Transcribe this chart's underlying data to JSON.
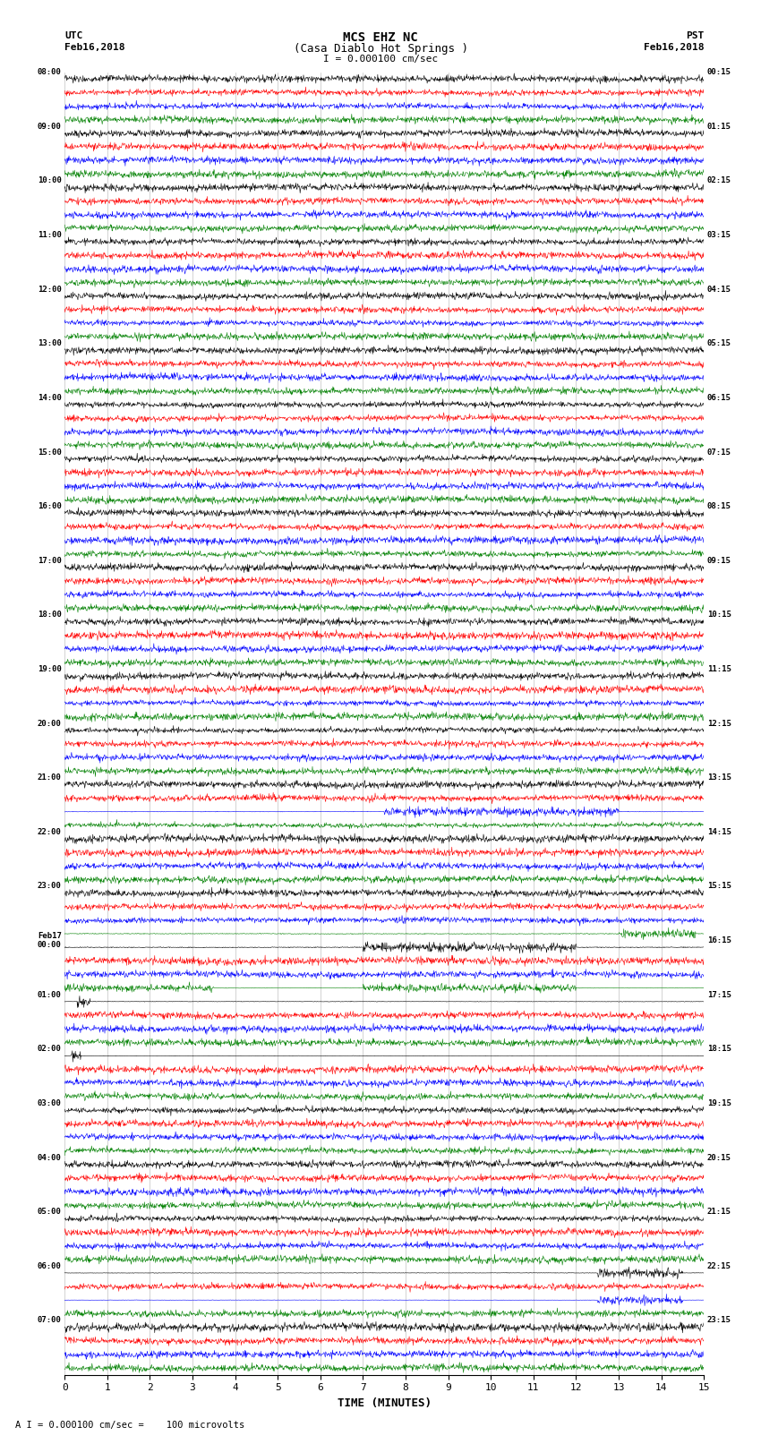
{
  "title_line1": "MCS EHZ NC",
  "title_line2": "(Casa Diablo Hot Springs )",
  "scale_label": "I = 0.000100 cm/sec",
  "utc_label1": "UTC",
  "utc_label2": "Feb16,2018",
  "pst_label1": "PST",
  "pst_label2": "Feb16,2018",
  "bottom_label": "A I = 0.000100 cm/sec =    100 microvolts",
  "xlabel": "TIME (MINUTES)",
  "left_times": [
    "08:00",
    "09:00",
    "10:00",
    "11:00",
    "12:00",
    "13:00",
    "14:00",
    "15:00",
    "16:00",
    "17:00",
    "18:00",
    "19:00",
    "20:00",
    "21:00",
    "22:00",
    "23:00",
    "Feb17\n00:00",
    "01:00",
    "02:00",
    "03:00",
    "04:00",
    "05:00",
    "06:00",
    "07:00"
  ],
  "right_times": [
    "00:15",
    "01:15",
    "02:15",
    "03:15",
    "04:15",
    "05:15",
    "06:15",
    "07:15",
    "08:15",
    "09:15",
    "10:15",
    "11:15",
    "12:15",
    "13:15",
    "14:15",
    "15:15",
    "16:15",
    "17:15",
    "18:15",
    "19:15",
    "20:15",
    "21:15",
    "22:15",
    "23:15"
  ],
  "colors": [
    "black",
    "red",
    "blue",
    "green"
  ],
  "n_rows": 24,
  "n_traces_per_row": 4,
  "background_color": "white",
  "figsize": [
    8.5,
    16.13
  ],
  "dpi": 100,
  "noise_amplitude": 0.4,
  "special_events": {
    "green_large_row": 16,
    "black_spike_row": 17,
    "black_spike2_row": 18,
    "blue_large_row": 22,
    "green_event_row": 15
  }
}
